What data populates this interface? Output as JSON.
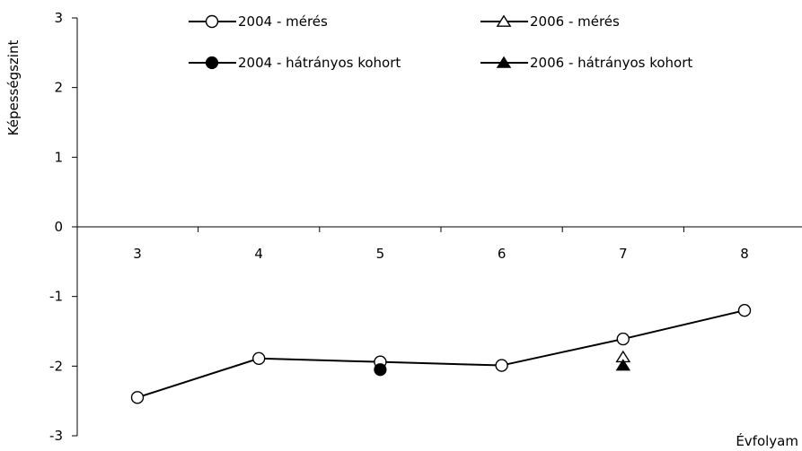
{
  "chart_data": {
    "type": "line",
    "x": [
      "3",
      "4",
      "5",
      "6",
      "7",
      "8"
    ],
    "ylabel": "Képességszint",
    "xlabel": "Évfolyam",
    "ylim": [
      -3,
      3
    ],
    "yticks": [
      3,
      2,
      1,
      0,
      -1,
      -2,
      -3
    ],
    "series": [
      {
        "name": "2004 - mérés",
        "marker": "open-circle",
        "line": true,
        "points": [
          [
            3,
            -2.45
          ],
          [
            4,
            -1.89
          ],
          [
            5,
            -1.94
          ],
          [
            6,
            -1.99
          ],
          [
            7,
            -1.61
          ],
          [
            8,
            -1.2
          ]
        ]
      },
      {
        "name": "2006 - mérés",
        "marker": "open-triangle",
        "line": false,
        "points": [
          [
            7,
            -1.87
          ]
        ]
      },
      {
        "name": "2004 - hátrányos kohort",
        "marker": "filled-circle",
        "line": false,
        "points": [
          [
            5,
            -2.05
          ]
        ]
      },
      {
        "name": "2006 - hátrányos kohort",
        "marker": "filled-triangle",
        "line": false,
        "points": [
          [
            7,
            -1.99
          ]
        ]
      }
    ],
    "legend_position": "top"
  }
}
